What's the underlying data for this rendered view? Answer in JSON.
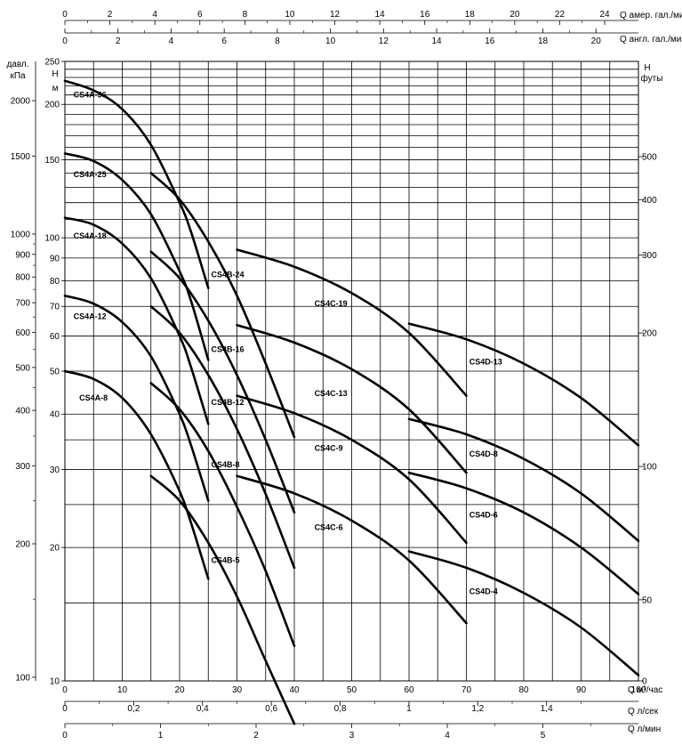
{
  "chart_data": {
    "type": "line",
    "title": "",
    "x_axis": {
      "label": "Q м³/час",
      "range": [
        0,
        100
      ],
      "scale": "linear",
      "ticks": [
        "0",
        "10",
        "20",
        "30",
        "40",
        "50",
        "60",
        "70",
        "80",
        "90",
        "100"
      ]
    },
    "y_axis": {
      "label": "H м",
      "range": [
        10,
        250
      ],
      "scale": "log",
      "ticks": [
        "10",
        "20",
        "30",
        "40",
        "50",
        "60",
        "70",
        "80",
        "90",
        "100",
        "150",
        "200",
        "250"
      ]
    },
    "secondary_axes": {
      "top_us_gpm": {
        "label": "Q амер. гал./мин",
        "ticks": [
          "0",
          "2",
          "4",
          "6",
          "8",
          "10",
          "12",
          "14",
          "16",
          "18",
          "20",
          "22",
          "24"
        ]
      },
      "top_uk_gpm": {
        "label": "Q англ. гал./мин",
        "ticks": [
          "0",
          "2",
          "4",
          "6",
          "8",
          "10",
          "12",
          "14",
          "16",
          "18",
          "20"
        ]
      },
      "bottom_l_s": {
        "label": "Q л/сек",
        "ticks": [
          "0",
          "0,2",
          "0,4",
          "0,6",
          "0,8",
          "1",
          "1,2",
          "1,4"
        ]
      },
      "bottom_l_min": {
        "label": "Q л/мин",
        "ticks": [
          "0",
          "1",
          "2",
          "3",
          "4",
          "5"
        ]
      },
      "left_kpa": {
        "label": "давл. кПа",
        "ticks": [
          "100",
          "200",
          "300",
          "400",
          "500",
          "600",
          "700",
          "800",
          "900",
          "1000",
          "1500",
          "2000"
        ]
      },
      "right_feet": {
        "label": "H футы",
        "ticks": [
          "0",
          "50",
          "100",
          "200",
          "300",
          "400",
          "500"
        ]
      }
    },
    "grid": true,
    "legend": "none",
    "series": [
      {
        "name": "CS4A-36",
        "points": [
          [
            0,
            226
          ],
          [
            5,
            215
          ],
          [
            10,
            195
          ],
          [
            15,
            162
          ],
          [
            20,
            120
          ],
          [
            22,
            103
          ],
          [
            25,
            77
          ]
        ]
      },
      {
        "name": "CS4A-25",
        "points": [
          [
            0,
            155
          ],
          [
            5,
            149
          ],
          [
            10,
            135
          ],
          [
            15,
            113
          ],
          [
            20,
            84
          ],
          [
            22,
            72
          ],
          [
            25,
            53
          ]
        ]
      },
      {
        "name": "CS4A-18",
        "points": [
          [
            0,
            111
          ],
          [
            5,
            107
          ],
          [
            10,
            97
          ],
          [
            15,
            81
          ],
          [
            20,
            60
          ],
          [
            22,
            51
          ],
          [
            25,
            38
          ]
        ]
      },
      {
        "name": "CS4A-12",
        "points": [
          [
            0,
            74
          ],
          [
            5,
            71
          ],
          [
            10,
            64.5
          ],
          [
            15,
            54
          ],
          [
            20,
            40
          ],
          [
            22,
            34
          ],
          [
            25,
            25.5
          ]
        ]
      },
      {
        "name": "CS4A-8",
        "points": [
          [
            0,
            50
          ],
          [
            5,
            48
          ],
          [
            10,
            43.5
          ],
          [
            15,
            36
          ],
          [
            20,
            26.8
          ],
          [
            22,
            22.7
          ],
          [
            25,
            17
          ]
        ]
      },
      {
        "name": "CS4B-24",
        "points": [
          [
            15,
            140
          ],
          [
            20,
            122
          ],
          [
            25,
            98
          ],
          [
            30,
            74
          ],
          [
            35,
            52
          ],
          [
            40,
            35.5
          ]
        ]
      },
      {
        "name": "CS4B-16",
        "points": [
          [
            15,
            93
          ],
          [
            20,
            81
          ],
          [
            25,
            65
          ],
          [
            30,
            49
          ],
          [
            35,
            35
          ],
          [
            40,
            24
          ]
        ]
      },
      {
        "name": "CS4B-12",
        "points": [
          [
            15,
            70
          ],
          [
            20,
            61
          ],
          [
            25,
            49
          ],
          [
            30,
            37
          ],
          [
            35,
            26.4
          ],
          [
            40,
            18
          ]
        ]
      },
      {
        "name": "CS4B-8",
        "points": [
          [
            15,
            47
          ],
          [
            20,
            41
          ],
          [
            25,
            33
          ],
          [
            30,
            24.7
          ],
          [
            35,
            17.7
          ],
          [
            40,
            12
          ]
        ]
      },
      {
        "name": "CS4B-5",
        "points": [
          [
            15,
            29
          ],
          [
            20,
            25.5
          ],
          [
            25,
            20.5
          ],
          [
            30,
            15.5
          ],
          [
            35,
            11.1
          ],
          [
            40,
            8
          ]
        ]
      },
      {
        "name": "CS4C-19",
        "points": [
          [
            30,
            94
          ],
          [
            40,
            86
          ],
          [
            50,
            75
          ],
          [
            60,
            61
          ],
          [
            70,
            44
          ]
        ]
      },
      {
        "name": "CS4C-13",
        "points": [
          [
            30,
            63.5
          ],
          [
            40,
            58
          ],
          [
            50,
            50.5
          ],
          [
            60,
            41
          ],
          [
            70,
            29.5
          ]
        ]
      },
      {
        "name": "CS4C-9",
        "points": [
          [
            30,
            44
          ],
          [
            40,
            40.2
          ],
          [
            50,
            35
          ],
          [
            60,
            28.5
          ],
          [
            70,
            20.5
          ]
        ]
      },
      {
        "name": "CS4C-6",
        "points": [
          [
            30,
            29
          ],
          [
            40,
            26.5
          ],
          [
            50,
            23
          ],
          [
            60,
            18.7
          ],
          [
            70,
            13.5
          ]
        ]
      },
      {
        "name": "CS4D-13",
        "points": [
          [
            60,
            64
          ],
          [
            70,
            59
          ],
          [
            80,
            52
          ],
          [
            90,
            43.5
          ],
          [
            100,
            34
          ]
        ]
      },
      {
        "name": "CS4D-8",
        "points": [
          [
            60,
            39
          ],
          [
            70,
            36
          ],
          [
            80,
            31.7
          ],
          [
            90,
            26.5
          ],
          [
            100,
            20.7
          ]
        ]
      },
      {
        "name": "CS4D-6",
        "points": [
          [
            60,
            29.5
          ],
          [
            70,
            27.2
          ],
          [
            80,
            24
          ],
          [
            90,
            20
          ],
          [
            100,
            15.7
          ]
        ]
      },
      {
        "name": "CS4D-4",
        "points": [
          [
            60,
            19.6
          ],
          [
            70,
            18
          ],
          [
            80,
            15.8
          ],
          [
            90,
            13.2
          ],
          [
            100,
            10.3
          ]
        ]
      }
    ]
  }
}
